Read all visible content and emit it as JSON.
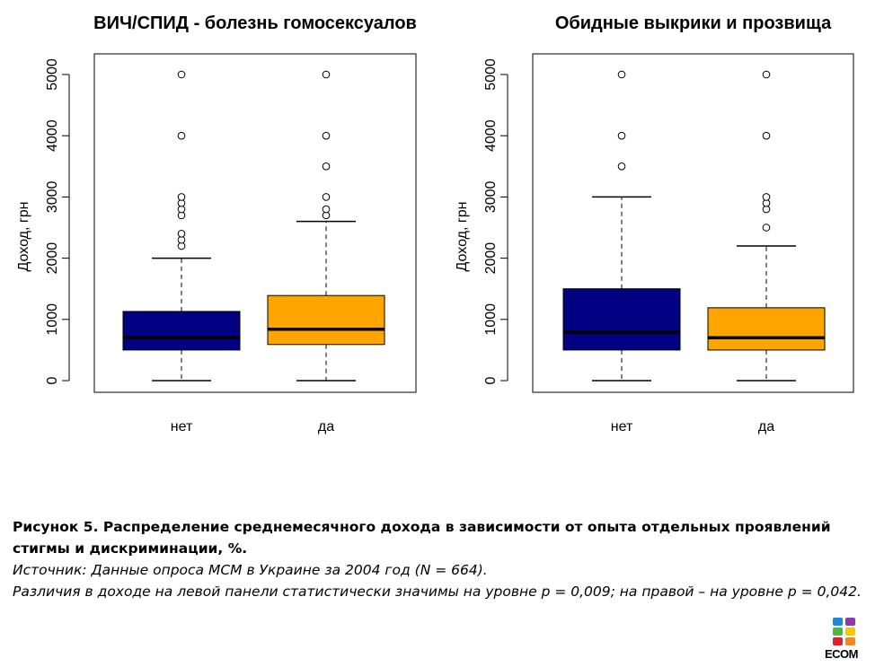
{
  "chart_data": [
    {
      "type": "boxplot",
      "title": "ВИЧ/СПИД - болезнь гомосексуалов",
      "ylabel": "Доход, грн",
      "ylim": [
        0,
        5000
      ],
      "yticks": [
        "0",
        "1000",
        "2000",
        "3000",
        "4000",
        "5000"
      ],
      "categories": [
        "нет",
        "да"
      ],
      "colors": [
        "#000080",
        "#FFA500"
      ],
      "boxes": [
        {
          "min": 0,
          "q1": 500,
          "median": 700,
          "q3": 1130,
          "max": 2000,
          "outliers": [
            2200,
            2300,
            2400,
            2700,
            2800,
            2900,
            3000,
            4000,
            5000
          ]
        },
        {
          "min": 0,
          "q1": 590,
          "median": 840,
          "q3": 1390,
          "max": 2600,
          "outliers": [
            2700,
            2800,
            3000,
            3500,
            4000,
            5000
          ]
        }
      ]
    },
    {
      "type": "boxplot",
      "title": "Обидные выкрики и прозвища",
      "ylabel": "Доход, грн",
      "ylim": [
        0,
        5000
      ],
      "yticks": [
        "0",
        "1000",
        "2000",
        "3000",
        "4000",
        "5000"
      ],
      "categories": [
        "нет",
        "да"
      ],
      "colors": [
        "#000080",
        "#FFA500"
      ],
      "boxes": [
        {
          "min": 0,
          "q1": 500,
          "median": 790,
          "q3": 1500,
          "max": 3000,
          "outliers": [
            3500,
            4000,
            5000
          ]
        },
        {
          "min": 0,
          "q1": 500,
          "median": 700,
          "q3": 1190,
          "max": 2200,
          "outliers": [
            2500,
            2800,
            2900,
            3000,
            4000,
            5000
          ]
        }
      ]
    }
  ],
  "caption": {
    "title": "Рисунок 5. Распределение среднемесячного дохода в зависимости от опыта отдельных проявлений стигмы и дискриминации, %.",
    "source": "Источник: Данные опроса МСМ в Украине за 2004 год (N = 664).",
    "note": "Различия в доходе на левой панели статистически значимы на уровне p = 0,009; на правой – на уровне p = 0,042."
  },
  "logo": {
    "text": "ECOM"
  }
}
